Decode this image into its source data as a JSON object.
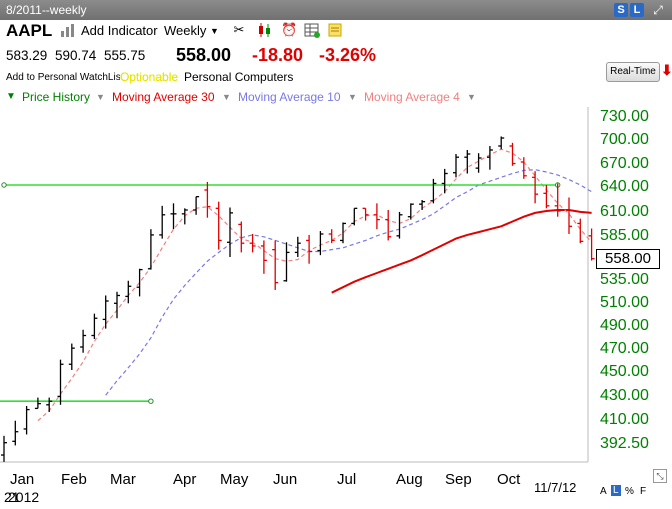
{
  "window": {
    "title": "8/2011--weekly"
  },
  "header": {
    "symbol": "AAPL",
    "add_indicator": "Add Indicator",
    "period": "Weekly",
    "open": "583.29",
    "high": "590.74",
    "low": "555.75",
    "last": "558.00",
    "change": "-18.80",
    "change_pct": "-3.26%",
    "watchlist_link": "Add to Personal WatchList",
    "optionable": "Optionable",
    "industry": "Personal Computers",
    "realtime_button": "Real-Time",
    "top_badges": [
      "S",
      "L"
    ]
  },
  "legend": {
    "items": [
      {
        "label": "Price History",
        "color": "#008000"
      },
      {
        "label": "Moving Average 30",
        "color": "#e00000"
      },
      {
        "label": "Moving Average 10",
        "color": "#7878e6"
      },
      {
        "label": "Moving Average 4",
        "color": "#f08080"
      }
    ]
  },
  "footer": {
    "date_stamp": "11/7/12",
    "year_label": "2012",
    "cursor_text": "21",
    "scale_letters": [
      "A",
      "L",
      "%",
      "F"
    ]
  },
  "colors": {
    "up_bar": "#000000",
    "down_bar": "#e00000",
    "axis_label": "#008000",
    "trendline": "#33dd33",
    "ma30": "#e00000",
    "ma10": "#7878e6",
    "ma4": "#f08080"
  },
  "chart_data": {
    "type": "ohlc",
    "timeframe": "weekly",
    "y_axis": {
      "ticks": [
        392.5,
        410.0,
        430.0,
        450.0,
        470.0,
        490.0,
        510.0,
        535.0,
        560.0,
        585.0,
        610.0,
        640.0,
        670.0,
        700.0,
        730.0
      ],
      "tick_labels": [
        "392.50",
        "410.00",
        "430.00",
        "450.00",
        "470.00",
        "490.00",
        "510.00",
        "535.00",
        "560.00",
        "585.00",
        "610.00",
        "640.00",
        "670.00",
        "700.00",
        "730.00"
      ],
      "scale": "log",
      "current_price": "558.00"
    },
    "x_axis": {
      "labels": [
        "Jan",
        "Feb",
        "Mar",
        "Apr",
        "May",
        "Jun",
        "Jul",
        "Aug",
        "Sep",
        "Oct"
      ]
    },
    "bars": [
      {
        "o": 383,
        "h": 397,
        "l": 378,
        "c": 392
      },
      {
        "o": 393,
        "h": 408,
        "l": 390,
        "c": 400
      },
      {
        "o": 402,
        "h": 420,
        "l": 398,
        "c": 417
      },
      {
        "o": 418,
        "h": 427,
        "l": 418,
        "c": 422
      },
      {
        "o": 421,
        "h": 427,
        "l": 415,
        "c": 424
      },
      {
        "o": 428,
        "h": 459,
        "l": 421,
        "c": 455
      },
      {
        "o": 455,
        "h": 473,
        "l": 450,
        "c": 469
      },
      {
        "o": 470,
        "h": 485,
        "l": 465,
        "c": 480
      },
      {
        "o": 480,
        "h": 499,
        "l": 477,
        "c": 495
      },
      {
        "o": 494,
        "h": 516,
        "l": 486,
        "c": 510
      },
      {
        "o": 508,
        "h": 520,
        "l": 495,
        "c": 516
      },
      {
        "o": 515,
        "h": 532,
        "l": 508,
        "c": 526
      },
      {
        "o": 525,
        "h": 546,
        "l": 515,
        "c": 545
      },
      {
        "o": 546,
        "h": 590,
        "l": 545,
        "c": 584
      },
      {
        "o": 584,
        "h": 615,
        "l": 580,
        "c": 605
      },
      {
        "o": 606,
        "h": 618,
        "l": 590,
        "c": 606
      },
      {
        "o": 606,
        "h": 612,
        "l": 595,
        "c": 610
      },
      {
        "o": 610,
        "h": 626,
        "l": 605,
        "c": 626
      },
      {
        "o": 634,
        "h": 644,
        "l": 602,
        "c": 614
      },
      {
        "o": 612,
        "h": 620,
        "l": 568,
        "c": 578
      },
      {
        "o": 576,
        "h": 613,
        "l": 560,
        "c": 607
      },
      {
        "o": 595,
        "h": 598,
        "l": 565,
        "c": 575
      },
      {
        "o": 575,
        "h": 585,
        "l": 565,
        "c": 572
      },
      {
        "o": 572,
        "h": 578,
        "l": 540,
        "c": 556
      },
      {
        "o": 568,
        "h": 578,
        "l": 522,
        "c": 530
      },
      {
        "o": 532,
        "h": 576,
        "l": 531,
        "c": 565
      },
      {
        "o": 565,
        "h": 582,
        "l": 560,
        "c": 575
      },
      {
        "o": 578,
        "h": 584,
        "l": 552,
        "c": 566
      },
      {
        "o": 567,
        "h": 588,
        "l": 562,
        "c": 585
      },
      {
        "o": 585,
        "h": 590,
        "l": 575,
        "c": 578
      },
      {
        "o": 578,
        "h": 597,
        "l": 575,
        "c": 596
      },
      {
        "o": 596,
        "h": 612,
        "l": 594,
        "c": 612
      },
      {
        "o": 612,
        "h": 612,
        "l": 599,
        "c": 605
      },
      {
        "o": 605,
        "h": 618,
        "l": 590,
        "c": 600
      },
      {
        "o": 600,
        "h": 610,
        "l": 578,
        "c": 582
      },
      {
        "o": 583,
        "h": 608,
        "l": 580,
        "c": 605
      },
      {
        "o": 603,
        "h": 618,
        "l": 600,
        "c": 617
      },
      {
        "o": 617,
        "h": 622,
        "l": 610,
        "c": 620
      },
      {
        "o": 621,
        "h": 648,
        "l": 618,
        "c": 642
      },
      {
        "o": 642,
        "h": 661,
        "l": 630,
        "c": 655
      },
      {
        "o": 656,
        "h": 680,
        "l": 650,
        "c": 676
      },
      {
        "o": 676,
        "h": 685,
        "l": 655,
        "c": 680
      },
      {
        "o": 662,
        "h": 681,
        "l": 656,
        "c": 675
      },
      {
        "o": 676,
        "h": 690,
        "l": 660,
        "c": 685
      },
      {
        "o": 690,
        "h": 702,
        "l": 686,
        "c": 700
      },
      {
        "o": 690,
        "h": 694,
        "l": 665,
        "c": 668
      },
      {
        "o": 670,
        "h": 676,
        "l": 648,
        "c": 652
      },
      {
        "o": 650,
        "h": 658,
        "l": 618,
        "c": 629
      },
      {
        "o": 630,
        "h": 640,
        "l": 612,
        "c": 615
      },
      {
        "o": 615,
        "h": 642,
        "l": 603,
        "c": 609
      },
      {
        "o": 610,
        "h": 625,
        "l": 585,
        "c": 593
      },
      {
        "o": 596,
        "h": 601,
        "l": 575,
        "c": 577
      },
      {
        "o": 583,
        "h": 590.74,
        "l": 555.75,
        "c": 558
      }
    ],
    "series": [
      {
        "name": "Moving Average 30",
        "values": [
          null,
          null,
          null,
          null,
          null,
          null,
          null,
          null,
          null,
          null,
          null,
          null,
          null,
          null,
          null,
          null,
          null,
          null,
          null,
          null,
          null,
          null,
          null,
          null,
          null,
          null,
          null,
          null,
          null,
          519,
          525,
          531,
          536,
          541,
          546,
          551,
          556,
          562,
          568,
          574,
          580,
          584,
          587,
          590,
          593,
          598,
          603,
          607,
          609,
          610,
          610,
          608,
          607
        ]
      },
      {
        "name": "Moving Average 10",
        "values": [
          null,
          null,
          null,
          null,
          null,
          null,
          null,
          null,
          null,
          429,
          441,
          452,
          464,
          478,
          496,
          512,
          527,
          541,
          555,
          565,
          574,
          581,
          584,
          582,
          578,
          574,
          570,
          566,
          566,
          568,
          570,
          574,
          578,
          583,
          587,
          590,
          595,
          600,
          606,
          615,
          625,
          632,
          640,
          645,
          650,
          655,
          659,
          660,
          657,
          653,
          647,
          640,
          632
        ]
      },
      {
        "name": "Moving Average 4",
        "values": [
          null,
          null,
          null,
          408,
          416,
          430,
          443,
          457,
          475,
          490,
          502,
          516,
          530,
          548,
          570,
          590,
          604,
          612,
          614,
          604,
          592,
          580,
          576,
          567,
          558,
          555,
          557,
          567,
          573,
          578,
          586,
          598,
          604,
          605,
          599,
          596,
          601,
          612,
          621,
          632,
          648,
          663,
          671,
          679,
          686,
          681,
          670,
          652,
          634,
          618,
          606,
          590,
          576
        ]
      }
    ],
    "trendlines": [
      {
        "from": {
          "bar": 0,
          "price": 640
        },
        "to": {
          "bar": 49,
          "price": 640
        }
      },
      {
        "from": {
          "bar": -3,
          "price": 424
        },
        "to": {
          "bar": 13,
          "price": 424
        }
      }
    ]
  }
}
